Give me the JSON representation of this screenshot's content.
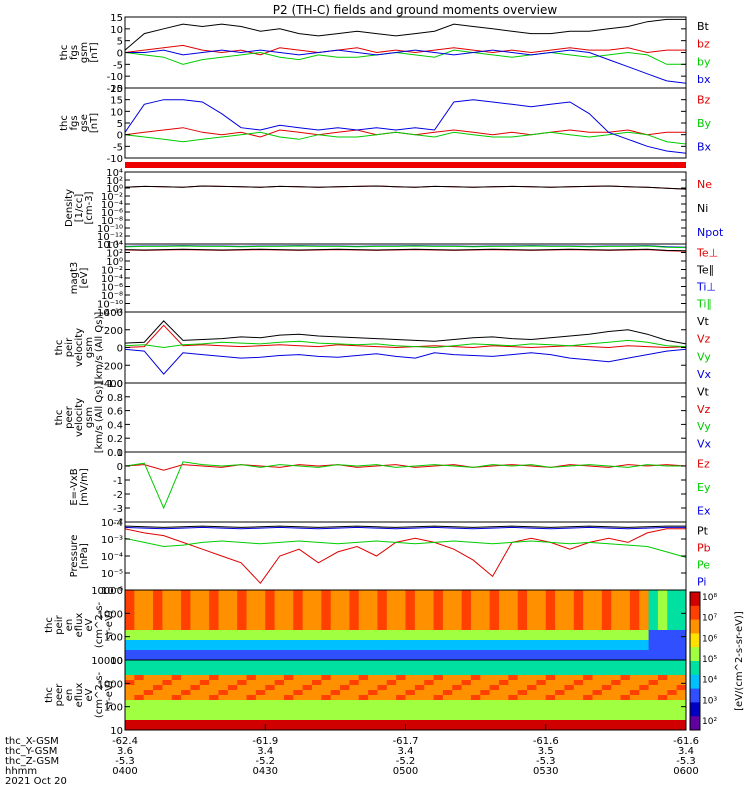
{
  "title": "P2 (TH-C) fields and ground moments overview",
  "colors": {
    "black": "#000000",
    "red": "#e00000",
    "green": "#00cc00",
    "blue": "#0000e0"
  },
  "chart_data": [
    {
      "type": "line",
      "id": "fgs_gsm",
      "ylabel": [
        "thc",
        "fgs",
        "gsm",
        "[nT]"
      ],
      "ylim": [
        -15,
        15
      ],
      "yticks": [
        "15",
        "10",
        "5",
        "0",
        "-5",
        "-10",
        "-15"
      ],
      "series": [
        {
          "name": "Bt",
          "color": "#000000",
          "values": [
            1,
            8,
            10,
            12,
            11,
            12,
            11,
            9,
            10,
            8,
            7,
            8,
            9,
            8,
            7,
            8,
            9,
            12,
            11,
            10,
            9,
            8,
            8,
            9,
            9,
            10,
            11,
            13,
            14,
            14
          ]
        },
        {
          "name": "bz",
          "color": "#e00000",
          "values": [
            0,
            1,
            2,
            3,
            1,
            0,
            1,
            -1,
            2,
            1,
            0,
            1,
            2,
            0,
            1,
            0,
            1,
            2,
            1,
            0,
            1,
            0,
            1,
            2,
            1,
            1,
            2,
            0,
            1,
            1
          ]
        },
        {
          "name": "by",
          "color": "#00cc00",
          "values": [
            0,
            -1,
            -2,
            -5,
            -3,
            -2,
            -1,
            0,
            -2,
            -3,
            -1,
            -2,
            -2,
            -1,
            0,
            -1,
            -2,
            1,
            0,
            -1,
            -2,
            -1,
            0,
            -1,
            -2,
            -1,
            0,
            -1,
            -5,
            -5
          ]
        },
        {
          "name": "bx",
          "color": "#0000e0",
          "values": [
            0,
            0,
            1,
            -1,
            0,
            1,
            0,
            1,
            0,
            -1,
            0,
            1,
            0,
            -1,
            0,
            1,
            0,
            -1,
            0,
            1,
            0,
            -1,
            0,
            1,
            0,
            -3,
            -6,
            -9,
            -12,
            -13
          ]
        }
      ]
    },
    {
      "type": "line",
      "id": "fgs_gse",
      "ylabel": [
        "thc",
        "fgs",
        "gse",
        "[nT]"
      ],
      "ylim": [
        -10,
        20
      ],
      "yticks": [
        "20",
        "15",
        "10",
        "5",
        "0",
        "-5",
        "-10"
      ],
      "series": [
        {
          "name": "Bz",
          "color": "#e00000",
          "values": [
            0,
            1,
            2,
            3,
            1,
            0,
            1,
            -1,
            2,
            1,
            0,
            1,
            2,
            0,
            1,
            0,
            1,
            2,
            1,
            0,
            1,
            0,
            1,
            2,
            1,
            1,
            2,
            0,
            1,
            1
          ]
        },
        {
          "name": "By",
          "color": "#00cc00",
          "values": [
            0,
            -1,
            -2,
            -3,
            -2,
            -1,
            0,
            1,
            -1,
            -2,
            0,
            -1,
            -1,
            0,
            1,
            0,
            -1,
            1,
            0,
            -1,
            -1,
            0,
            1,
            0,
            -1,
            0,
            1,
            0,
            -3,
            -4
          ]
        },
        {
          "name": "Bx",
          "color": "#0000e0",
          "values": [
            1,
            13,
            15,
            15,
            14,
            9,
            3,
            2,
            4,
            3,
            2,
            3,
            2,
            3,
            2,
            3,
            2,
            14,
            15,
            14,
            13,
            12,
            13,
            14,
            9,
            1,
            -2,
            -5,
            -7,
            -8
          ]
        }
      ]
    },
    {
      "type": "line",
      "id": "density",
      "ylabel": [
        "Density",
        "[1/cc]",
        "[cm-3]"
      ],
      "ylog": true,
      "ylim": [
        -15,
        4
      ],
      "yticks": [
        "10⁴",
        "10²",
        "10⁰",
        "10⁻²",
        "10⁻⁴",
        "10⁻⁶",
        "10⁻⁸",
        "10⁻¹⁰",
        "10⁻¹²",
        "10⁻¹⁴"
      ],
      "series": [
        {
          "name": "Ne",
          "color": "#e00000",
          "values": [
            0,
            0.2,
            0.1,
            0,
            0.3,
            0.2,
            0.1,
            0,
            0.2,
            0.1,
            0,
            0.1,
            0.2,
            0.3,
            0.1,
            0,
            0.2,
            0.1,
            0,
            0.1,
            0.2,
            0.1,
            0,
            0.1,
            0.2,
            0.3,
            0.1,
            0,
            -0.3,
            -0.5
          ]
        },
        {
          "name": "Ni",
          "color": "#000000",
          "values": [
            0,
            0.2,
            0.1,
            0,
            0.3,
            0.2,
            0.1,
            0,
            0.2,
            0.1,
            0,
            0.1,
            0.2,
            0.3,
            0.1,
            0,
            0.2,
            0.1,
            0,
            0.1,
            0.2,
            0.1,
            0,
            0.1,
            0.2,
            0.3,
            0.1,
            0,
            -0.3,
            -0.5
          ]
        },
        {
          "name": "Npot",
          "color": "#0000e0",
          "values": []
        }
      ]
    },
    {
      "type": "line",
      "id": "temp",
      "ylabel": [
        "magt3",
        "[eV]"
      ],
      "ylog": true,
      "ylim": [
        -13,
        4
      ],
      "yticks": [
        "10⁴",
        "10²",
        "10⁰",
        "10⁻²",
        "10⁻⁴",
        "10⁻⁶",
        "10⁻⁸",
        "10⁻¹⁰",
        "10⁻¹²"
      ],
      "series": [
        {
          "name": "Te⊥",
          "color": "#e00000",
          "values": [
            2.5,
            2.4,
            2.5,
            2.6,
            2.5,
            2.4,
            2.5,
            2.6,
            2.5,
            2.4,
            2.5,
            2.6,
            2.5,
            2.4,
            2.5,
            2.6,
            2.5,
            2.4,
            2.5,
            2.6,
            2.5,
            2.4,
            2.5,
            2.6,
            2.5,
            2.4,
            2.5,
            2.6,
            2.3,
            2.2
          ]
        },
        {
          "name": "Te∥",
          "color": "#000000",
          "values": [
            2.6,
            2.5,
            2.6,
            2.7,
            2.6,
            2.5,
            2.6,
            2.7,
            2.6,
            2.5,
            2.6,
            2.7,
            2.6,
            2.5,
            2.6,
            2.7,
            2.6,
            2.5,
            2.6,
            2.7,
            2.6,
            2.5,
            2.6,
            2.7,
            2.6,
            2.5,
            2.6,
            2.7,
            2.4,
            2.3
          ]
        },
        {
          "name": "Ti⊥",
          "color": "#0000e0",
          "values": [
            3.4,
            3.5,
            3.5,
            3.6,
            3.5,
            3.5,
            3.4,
            3.5,
            3.5,
            3.6,
            3.5,
            3.5,
            3.4,
            3.5,
            3.5,
            3.6,
            3.5,
            3.5,
            3.4,
            3.5,
            3.5,
            3.6,
            3.5,
            3.5,
            3.4,
            3.5,
            3.5,
            3.6,
            3.3,
            3.2
          ]
        },
        {
          "name": "Ti∥",
          "color": "#00cc00",
          "values": [
            3.3,
            3.4,
            3.4,
            3.5,
            3.4,
            3.4,
            3.3,
            3.4,
            3.4,
            3.5,
            3.4,
            3.4,
            3.3,
            3.4,
            3.4,
            3.5,
            3.4,
            3.4,
            3.3,
            3.4,
            3.4,
            3.5,
            3.4,
            3.4,
            3.3,
            3.4,
            3.4,
            3.5,
            3.2,
            3.1
          ]
        }
      ]
    },
    {
      "type": "line",
      "id": "peir_vel",
      "ylabel": [
        "thc",
        "peir",
        "velocity",
        "gsm",
        "[km/s (All Qs)]"
      ],
      "ylim": [
        -400,
        400
      ],
      "yticks": [
        "400",
        "200",
        "0",
        "-200",
        "-400"
      ],
      "series": [
        {
          "name": "Vt",
          "color": "#000000",
          "values": [
            50,
            60,
            300,
            80,
            90,
            100,
            120,
            110,
            140,
            150,
            130,
            120,
            110,
            100,
            90,
            80,
            70,
            90,
            110,
            120,
            100,
            90,
            110,
            130,
            150,
            180,
            200,
            150,
            80,
            40
          ]
        },
        {
          "name": "Vz",
          "color": "#e00000",
          "values": [
            0,
            10,
            250,
            20,
            30,
            20,
            10,
            20,
            30,
            20,
            10,
            30,
            20,
            10,
            0,
            10,
            20,
            10,
            0,
            20,
            10,
            0,
            10,
            20,
            10,
            0,
            20,
            10,
            0,
            10
          ]
        },
        {
          "name": "Vy",
          "color": "#00cc00",
          "values": [
            20,
            30,
            0,
            30,
            40,
            60,
            50,
            40,
            60,
            70,
            50,
            40,
            30,
            40,
            20,
            10,
            0,
            20,
            40,
            30,
            20,
            40,
            30,
            20,
            40,
            60,
            80,
            60,
            20,
            10
          ]
        },
        {
          "name": "Vx",
          "color": "#0000e0",
          "values": [
            -20,
            -40,
            -300,
            -60,
            -80,
            -100,
            -120,
            -110,
            -90,
            -80,
            -100,
            -110,
            -90,
            -70,
            -100,
            -120,
            -60,
            -80,
            -90,
            -100,
            -80,
            -60,
            -80,
            -120,
            -140,
            -160,
            -120,
            -80,
            -40,
            -20
          ]
        }
      ]
    },
    {
      "type": "line",
      "id": "peer_vel",
      "ylabel": [
        "thc",
        "peer",
        "velocity",
        "gsm",
        "[km/s (All Qs)]"
      ],
      "ylim": [
        0,
        1
      ],
      "yticks": [
        "1.0",
        "0.8",
        "0.6",
        "0.4",
        "0.2",
        "0.0"
      ],
      "series": [
        {
          "name": "Vt",
          "color": "#000000",
          "values": []
        },
        {
          "name": "Vz",
          "color": "#e00000",
          "values": []
        },
        {
          "name": "Vy",
          "color": "#00cc00",
          "values": []
        },
        {
          "name": "Vx",
          "color": "#0000e0",
          "values": []
        }
      ]
    },
    {
      "type": "line",
      "id": "efield",
      "ylabel": [
        "E=-VxB",
        "[mV/m]"
      ],
      "ylim": [
        -4,
        1
      ],
      "yticks": [
        "1",
        "0",
        "-1",
        "-2",
        "-3",
        "-4"
      ],
      "series": [
        {
          "name": "Ez",
          "color": "#e00000",
          "values": [
            0,
            0.1,
            -0.3,
            0.1,
            0,
            -0.1,
            0.1,
            0,
            -0.1,
            0.1,
            0,
            0.1,
            -0.1,
            0,
            0.1,
            -0.1,
            0,
            0.1,
            -0.1,
            0,
            0.1,
            0,
            -0.1,
            0.1,
            0,
            -0.1,
            0.1,
            0,
            0.1,
            0
          ]
        },
        {
          "name": "Ey",
          "color": "#00cc00",
          "values": [
            0,
            0.2,
            -3,
            0.3,
            0.1,
            0,
            0.1,
            -0.1,
            0.1,
            0,
            -0.1,
            0.1,
            0,
            0.1,
            -0.1,
            0,
            0.1,
            0,
            -0.1,
            0.1,
            0,
            0.1,
            -0.1,
            0,
            0.1,
            0,
            -0.1,
            0.1,
            0,
            0
          ]
        },
        {
          "name": "Ex",
          "color": "#0000e0",
          "values": []
        }
      ]
    },
    {
      "type": "line",
      "id": "pressure",
      "ylabel": [
        "Pressure",
        "[nPa]"
      ],
      "ylog": true,
      "ylim": [
        -6,
        -1
      ],
      "yticks": [
        "10⁻²",
        "10⁻³",
        "10⁻⁴",
        "10⁻⁵",
        "10⁻⁶"
      ],
      "series": [
        {
          "name": "Pt",
          "color": "#000000",
          "values": [
            -1.3,
            -1.35,
            -1.4,
            -1.35,
            -1.3,
            -1.35,
            -1.4,
            -1.35,
            -1.3,
            -1.35,
            -1.4,
            -1.35,
            -1.3,
            -1.35,
            -1.4,
            -1.35,
            -1.3,
            -1.35,
            -1.4,
            -1.35,
            -1.3,
            -1.35,
            -1.4,
            -1.35,
            -1.3,
            -1.35,
            -1.4,
            -1.35,
            -1.3,
            -1.3
          ]
        },
        {
          "name": "Pb",
          "color": "#e00000",
          "values": [
            -1.5,
            -1.8,
            -2,
            -2.5,
            -3,
            -3.5,
            -4,
            -5.5,
            -3.5,
            -3,
            -4,
            -3.2,
            -2.8,
            -3.5,
            -2.5,
            -2.2,
            -2.5,
            -3,
            -3.8,
            -5,
            -2.5,
            -2.2,
            -2.5,
            -3,
            -2.5,
            -2.2,
            -2.5,
            -1.8,
            -1.5,
            -1.5
          ]
        },
        {
          "name": "Pe",
          "color": "#00cc00",
          "values": [
            -2.2,
            -2.5,
            -2.8,
            -2.7,
            -2.5,
            -2.4,
            -2.5,
            -2.6,
            -2.5,
            -2.4,
            -2.5,
            -2.6,
            -2.5,
            -2.4,
            -2.5,
            -2.6,
            -2.5,
            -2.4,
            -2.5,
            -2.6,
            -2.5,
            -2.4,
            -2.5,
            -2.6,
            -2.5,
            -2.6,
            -2.7,
            -2.8,
            -3.2,
            -3.6
          ]
        },
        {
          "name": "Pi",
          "color": "#0000e0",
          "values": [
            -1.4,
            -1.45,
            -1.5,
            -1.45,
            -1.4,
            -1.45,
            -1.5,
            -1.45,
            -1.4,
            -1.45,
            -1.5,
            -1.45,
            -1.4,
            -1.45,
            -1.5,
            -1.45,
            -1.4,
            -1.45,
            -1.5,
            -1.45,
            -1.4,
            -1.45,
            -1.5,
            -1.45,
            -1.4,
            -1.45,
            -1.5,
            -1.45,
            -1.4,
            -1.4
          ]
        }
      ]
    },
    {
      "type": "heatmap",
      "id": "peir_spec",
      "ylabel": [
        "thc",
        "peir",
        "en",
        "eflux",
        "eV",
        "(cm^2-s-",
        "sr-eV)"
      ],
      "ylog": true,
      "ylim": [
        5,
        20000
      ],
      "yticks": [
        "10000",
        "1000",
        "100",
        "10"
      ],
      "zlog": true,
      "zlim": [
        2,
        8
      ]
    },
    {
      "type": "heatmap",
      "id": "peer_spec",
      "ylabel": [
        "thc",
        "peer",
        "en",
        "eflux",
        "eV",
        "(cm^2-s-",
        "sr-eV)"
      ],
      "ylog": true,
      "ylim": [
        5,
        20000
      ],
      "yticks": [
        "10000",
        "1000",
        "100",
        "10"
      ],
      "zlog": true,
      "zlim": [
        2,
        8
      ]
    }
  ],
  "colorbar": {
    "ticks": [
      "10⁸",
      "10⁷",
      "10⁶",
      "10⁵",
      "10⁴",
      "10³",
      "10²"
    ],
    "label": "[eV/(cm^2-s-sr-eV)]",
    "overlap_label": "[eV/(cm^2-s-sr-eV)(All Qs)]"
  },
  "time_axis": {
    "start": "04:00",
    "end": "06:00",
    "ticks": [
      {
        "hhmm": "0400",
        "x": "-62.4",
        "y": "3.6",
        "z": "-5.3"
      },
      {
        "hhmm": "0430",
        "x": "-61.9",
        "y": "3.4",
        "z": "-5.2"
      },
      {
        "hhmm": "0500",
        "x": "-61.7",
        "y": "3.4",
        "z": "-5.2"
      },
      {
        "hhmm": "0530",
        "x": "-61.6",
        "y": "3.5",
        "z": "-5.3"
      },
      {
        "hhmm": "0600",
        "x": "-61.6",
        "y": "3.4",
        "z": "-5.3"
      }
    ],
    "row_labels": [
      "thc_X-GSM",
      "thc_Y-GSM",
      "thc_Z-GSM",
      "hhmm"
    ],
    "date": "2021 Oct 20"
  }
}
